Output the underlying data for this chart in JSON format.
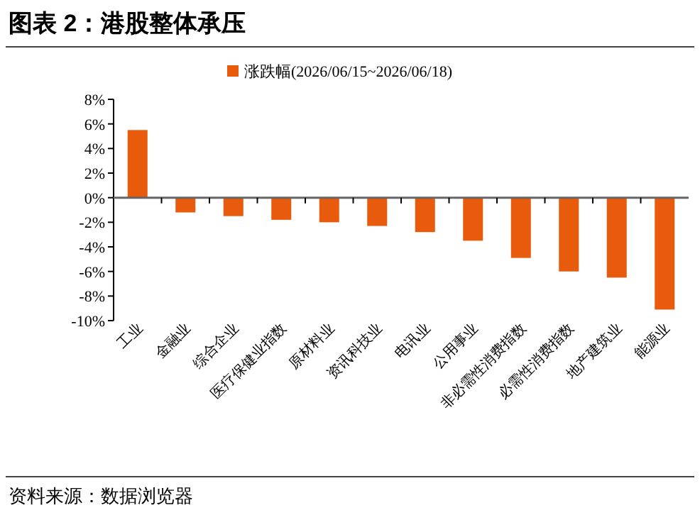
{
  "chart_data": {
    "type": "bar",
    "title": "图表 2：港股整体承压",
    "categories": [
      "工业",
      "金融业",
      "综合企业",
      "医疗保健业指数",
      "原材料业",
      "资讯科技业",
      "电讯业",
      "公用事业",
      "非必需性消费指数",
      "必需性消费指数",
      "地产建筑业",
      "能源业"
    ],
    "series": [
      {
        "name": "涨跌幅(2026/06/15~2026/06/18)",
        "color": "#e85a0c",
        "values": [
          5.5,
          -1.2,
          -1.5,
          -1.8,
          -2.0,
          -2.3,
          -2.8,
          -3.5,
          -4.9,
          -6.0,
          -6.5,
          -9.1
        ]
      }
    ],
    "ylim": [
      -10,
      8
    ],
    "yticks": [
      {
        "value": -10,
        "label": "-10%"
      },
      {
        "value": -8,
        "label": "-8%"
      },
      {
        "value": -6,
        "label": "-6%"
      },
      {
        "value": -4,
        "label": "-4%"
      },
      {
        "value": -2,
        "label": "-2%"
      },
      {
        "value": 0,
        "label": "0%"
      },
      {
        "value": 2,
        "label": "2%"
      },
      {
        "value": 4,
        "label": "4%"
      },
      {
        "value": 6,
        "label": "6%"
      },
      {
        "value": 8,
        "label": "8%"
      }
    ],
    "legend": "top",
    "annotations": [
      "资料来源：数据浏览器"
    ]
  }
}
